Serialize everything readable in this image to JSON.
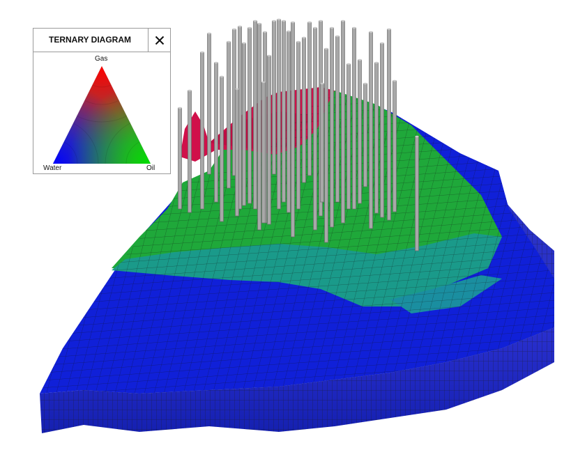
{
  "panel": {
    "title": "TERNARY DIAGRAM",
    "close_icon": "close-icon"
  },
  "ternary": {
    "labels": {
      "top": "Gas",
      "left": "Water",
      "right": "Oil"
    },
    "colors": {
      "gas": "#ff0000",
      "water": "#0000ff",
      "oil": "#00e000"
    }
  },
  "scene": {
    "colors": {
      "water_cells": "#1020d8",
      "oil_cells": "#1fa83a",
      "transition_cells": "#1a9a8a",
      "gas_cells": "#d0104a",
      "well_pipes": "#a8a8a8",
      "grid_lines": "#202020",
      "side_walls": "#5a5a5a"
    }
  }
}
